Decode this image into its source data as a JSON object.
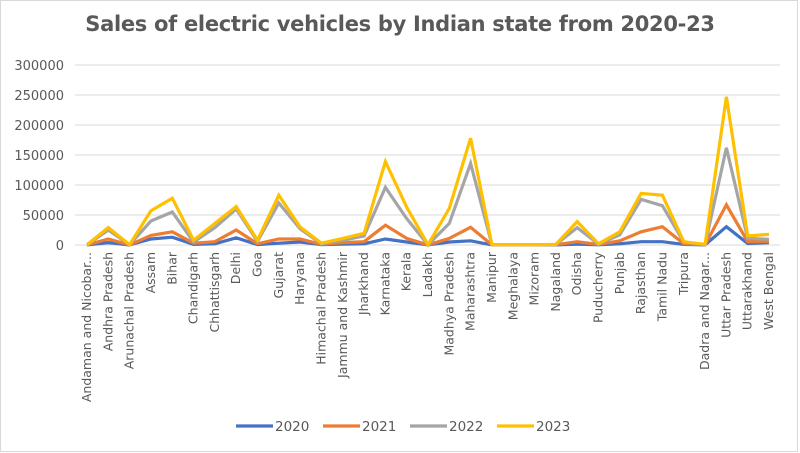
{
  "chart_data": {
    "type": "line",
    "title": "Sales of electric vehicles by Indian state from 2020-23",
    "xlabel": "",
    "ylabel": "",
    "ylim": [
      0,
      300000
    ],
    "yticks": [
      0,
      50000,
      100000,
      150000,
      200000,
      250000,
      300000
    ],
    "ytick_labels": [
      "0",
      "50000",
      "100000",
      "150000",
      "200000",
      "250000",
      "300000"
    ],
    "grid": true,
    "legend_position": "bottom",
    "categories": [
      "Andaman and Nicobar...",
      "Andhra Pradesh",
      "Arunachal Pradesh",
      "Assam",
      "Bihar",
      "Chandigarh",
      "Chhattisgarh",
      "Delhi",
      "Goa",
      "Gujarat",
      "Haryana",
      "Himachal Pradesh",
      "Jammu and Kashmir",
      "Jharkhand",
      "Karnataka",
      "Kerala",
      "Ladakh",
      "Madhya Pradesh",
      "Maharashtra",
      "Manipur",
      "Meghalaya",
      "Mizoram",
      "Nagaland",
      "Odisha",
      "Puducherry",
      "Punjab",
      "Rajasthan",
      "Tamil Nadu",
      "Tripura",
      "Dadra and Nagar...",
      "Uttar Pradesh",
      "Uttarakhand",
      "West Bengal"
    ],
    "series": [
      {
        "name": "2020",
        "color": "#4472c4",
        "values": [
          100,
          4000,
          100,
          10000,
          13000,
          1000,
          2000,
          12000,
          600,
          3000,
          5000,
          500,
          1500,
          2000,
          10000,
          5000,
          100,
          5000,
          7000,
          100,
          100,
          100,
          200,
          1500,
          300,
          2000,
          5500,
          5500,
          1000,
          200,
          30500,
          2500,
          4000
        ]
      },
      {
        "name": "2021",
        "color": "#ed7d31",
        "values": [
          200,
          10000,
          200,
          16000,
          22000,
          3000,
          5500,
          25000,
          2000,
          10000,
          10000,
          1000,
          4000,
          5500,
          33000,
          11000,
          200,
          11000,
          29500,
          200,
          200,
          200,
          500,
          5500,
          800,
          7000,
          22000,
          30500,
          2000,
          500,
          67000,
          5500,
          6000
        ]
      },
      {
        "name": "2022",
        "color": "#a5a5a5",
        "values": [
          300,
          25000,
          300,
          40000,
          55000,
          5000,
          29000,
          60000,
          6000,
          70000,
          27000,
          2000,
          8000,
          15000,
          96000,
          44000,
          300,
          36000,
          136000,
          300,
          300,
          300,
          800,
          29000,
          1500,
          17000,
          76000,
          65500,
          4500,
          800,
          162000,
          11000,
          9500
        ]
      },
      {
        "name": "2023",
        "color": "#ffc000",
        "values": [
          500,
          29000,
          500,
          57000,
          78000,
          8000,
          36000,
          64000,
          8000,
          83000,
          30000,
          3000,
          11000,
          19500,
          139000,
          63000,
          500,
          61000,
          178000,
          500,
          500,
          500,
          1000,
          39000,
          2000,
          22000,
          86000,
          83000,
          5500,
          1000,
          247000,
          15000,
          17800
        ]
      }
    ]
  }
}
